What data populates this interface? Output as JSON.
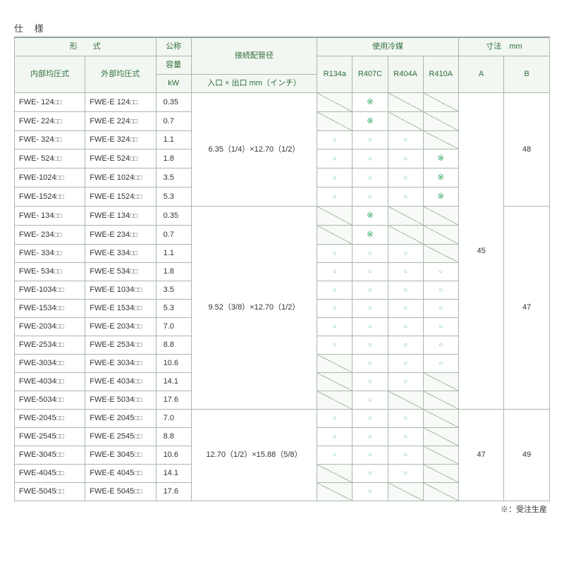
{
  "title": "仕 様",
  "footnote": "※：受注生産",
  "colors": {
    "header_bg": "#f2f7f2",
    "header_text": "#2f6e3a",
    "border": "#a9b8a9",
    "slash_bg": "#f7faf7",
    "circle_color": "#6b8",
    "asterisk_color": "#3a6"
  },
  "col_widths_pct": [
    13.2,
    13.2,
    6.6,
    23.5,
    6.6,
    6.6,
    6.6,
    6.6,
    8.5,
    8.5
  ],
  "header": {
    "row1": {
      "model_group": "形　　式",
      "nominal_l1": "公称",
      "pipe_l1": "接続配管径",
      "refrigerant_group": "使用冷媒",
      "dim_group": "寸法　mm"
    },
    "row2": {
      "internal": "内部均圧式",
      "external": "外部均圧式",
      "nominal_l2": "容量",
      "pipe_l2": "入口 × 出口 mm（インチ）",
      "r134a": "R134a",
      "r407c": "R407C",
      "r404a": "R404A",
      "r410a": "R410A",
      "dim_a": "A",
      "dim_b": "B"
    },
    "row3": {
      "nominal_l3": "kW"
    }
  },
  "box_suffix": "□□",
  "glyphs": {
    "circle": "○",
    "asterisk": "※"
  },
  "groups": [
    {
      "pipe": "6.35（1/4）×12.70（1/2）",
      "dim_a_span": null,
      "dim_b": "48",
      "rows": [
        {
          "int": "FWE- 124",
          "ext": "FWE-E 124",
          "kw": "0.35",
          "r": [
            "slash",
            "ast",
            "slash",
            "slash"
          ]
        },
        {
          "int": "FWE- 224",
          "ext": "FWE-E 224",
          "kw": "0.7",
          "r": [
            "slash",
            "ast",
            "slash",
            "slash"
          ]
        },
        {
          "int": "FWE- 324",
          "ext": "FWE-E 324",
          "kw": "1.1",
          "r": [
            "o",
            "o",
            "o",
            "slash"
          ]
        },
        {
          "int": "FWE- 524",
          "ext": "FWE-E 524",
          "kw": "1.8",
          "r": [
            "o",
            "o",
            "o",
            "ast"
          ]
        },
        {
          "int": "FWE-1024",
          "ext": "FWE-E 1024",
          "kw": "3.5",
          "r": [
            "o",
            "o",
            "o",
            "ast"
          ]
        },
        {
          "int": "FWE-1524",
          "ext": "FWE-E 1524",
          "kw": "5.3",
          "r": [
            "o",
            "o",
            "o",
            "ast"
          ]
        }
      ]
    },
    {
      "pipe": "9.52（3/8）×12.70（1/2）",
      "dim_a_span": "45",
      "dim_b": "47",
      "rows": [
        {
          "int": "FWE- 134",
          "ext": "FWE-E 134",
          "kw": "0.35",
          "r": [
            "slash",
            "ast",
            "slash",
            "slash"
          ]
        },
        {
          "int": "FWE- 234",
          "ext": "FWE-E 234",
          "kw": "0.7",
          "r": [
            "slash",
            "ast",
            "slash",
            "slash"
          ]
        },
        {
          "int": "FWE- 334",
          "ext": "FWE-E 334",
          "kw": "1.1",
          "r": [
            "o",
            "o",
            "o",
            "slash"
          ]
        },
        {
          "int": "FWE- 534",
          "ext": "FWE-E 534",
          "kw": "1.8",
          "r": [
            "o",
            "o",
            "o",
            "o"
          ]
        },
        {
          "int": "FWE-1034",
          "ext": "FWE-E 1034",
          "kw": "3.5",
          "r": [
            "o",
            "o",
            "o",
            "o"
          ]
        },
        {
          "int": "FWE-1534",
          "ext": "FWE-E 1534",
          "kw": "5.3",
          "r": [
            "o",
            "o",
            "o",
            "o"
          ]
        },
        {
          "int": "FWE-2034",
          "ext": "FWE-E 2034",
          "kw": "7.0",
          "r": [
            "o",
            "o",
            "o",
            "o"
          ]
        },
        {
          "int": "FWE-2534",
          "ext": "FWE-E 2534",
          "kw": "8.8",
          "r": [
            "o",
            "o",
            "o",
            "o"
          ]
        },
        {
          "int": "FWE-3034",
          "ext": "FWE-E 3034",
          "kw": "10.6",
          "r": [
            "slash",
            "o",
            "o",
            "o"
          ]
        },
        {
          "int": "FWE-4034",
          "ext": "FWE-E 4034",
          "kw": "14.1",
          "r": [
            "slash",
            "o",
            "o",
            "slash"
          ]
        },
        {
          "int": "FWE-5034",
          "ext": "FWE-E 5034",
          "kw": "17.6",
          "r": [
            "slash",
            "o",
            "slash",
            "slash"
          ]
        }
      ]
    },
    {
      "pipe": "12.70（1/2）×15.88（5/8）",
      "dim_a_span": "47",
      "dim_b": "49",
      "rows": [
        {
          "int": "FWE-2045",
          "ext": "FWE-E 2045",
          "kw": "7.0",
          "r": [
            "o",
            "o",
            "o",
            "slash"
          ]
        },
        {
          "int": "FWE-2545",
          "ext": "FWE-E 2545",
          "kw": "8.8",
          "r": [
            "o",
            "o",
            "o",
            "slash"
          ]
        },
        {
          "int": "FWE-3045",
          "ext": "FWE-E 3045",
          "kw": "10.6",
          "r": [
            "o",
            "o",
            "o",
            "slash"
          ]
        },
        {
          "int": "FWE-4045",
          "ext": "FWE-E 4045",
          "kw": "14.1",
          "r": [
            "slash",
            "o",
            "o",
            "slash"
          ]
        },
        {
          "int": "FWE-5045",
          "ext": "FWE-E 5045",
          "kw": "17.6",
          "r": [
            "slash",
            "o",
            "slash",
            "slash"
          ]
        }
      ]
    }
  ]
}
